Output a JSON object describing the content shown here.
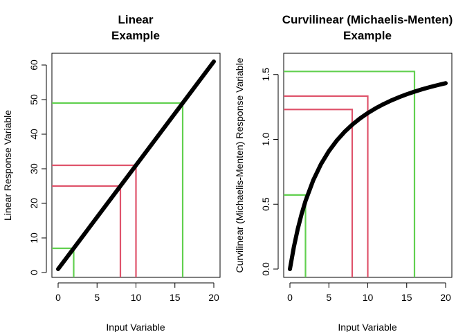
{
  "chart_data": [
    {
      "type": "line",
      "title_lines": [
        "Linear",
        "Example"
      ],
      "xlabel": "Input Variable",
      "ylabel": "Linear Response Variable",
      "xlim": [
        -0.8,
        20.8
      ],
      "ylim": [
        -1.4,
        63.4
      ],
      "x_ticks": [
        0,
        5,
        10,
        15,
        20
      ],
      "y_ticks": [
        0,
        10,
        20,
        30,
        40,
        50,
        60
      ],
      "grid": false,
      "series": [
        {
          "color": "#000000",
          "x": [
            0,
            20
          ],
          "y": [
            1,
            61
          ]
        }
      ],
      "guide_lines": [
        {
          "x": 2,
          "y": 7,
          "color": "#61D04F"
        },
        {
          "x": 8,
          "y": 25,
          "color": "#DF536B"
        },
        {
          "x": 10,
          "y": 31,
          "color": "#DF536B"
        },
        {
          "x": 16,
          "y": 49,
          "color": "#61D04F"
        }
      ]
    },
    {
      "type": "line",
      "title_lines": [
        "Curvilinear (Michaelis-Menten)",
        "Example"
      ],
      "xlabel": "Input Variable",
      "ylabel": "Curvilinear (Michaelis-Menten) Response Variable",
      "xlim": [
        -0.8,
        20.8
      ],
      "ylim": [
        -0.064,
        1.664
      ],
      "x_ticks": [
        0,
        5,
        10,
        15,
        20
      ],
      "y_ticks": [
        0.0,
        0.5,
        1.0,
        1.5
      ],
      "y_tick_labels": [
        "0.0",
        "0.5",
        "1.0",
        "1.5"
      ],
      "grid": false,
      "series": [
        {
          "color": "#000000",
          "x": [
            0,
            0.5,
            1,
            1.5,
            2,
            3,
            4,
            5,
            6,
            7,
            8,
            9,
            10,
            11,
            12,
            13,
            14,
            15,
            16,
            17,
            18,
            19,
            20
          ],
          "y": [
            0,
            0.1684,
            0.3077,
            0.4248,
            0.5246,
            0.6857,
            0.8101,
            0.9091,
            0.9897,
            1.0567,
            1.1132,
            1.1613,
            1.203,
            1.2393,
            1.2712,
            1.2996,
            1.3249,
            1.3476,
            1.368,
            1.3866,
            1.4034,
            1.4188,
            1.433
          ]
        }
      ],
      "guide_lines": [
        {
          "x": 2,
          "y": 0.5714,
          "color": "#61D04F"
        },
        {
          "x": 8,
          "y": 1.2308,
          "color": "#DF536B"
        },
        {
          "x": 10,
          "y": 1.3333,
          "color": "#DF536B"
        },
        {
          "x": 16,
          "y": 1.5238,
          "color": "#61D04F"
        }
      ]
    }
  ]
}
